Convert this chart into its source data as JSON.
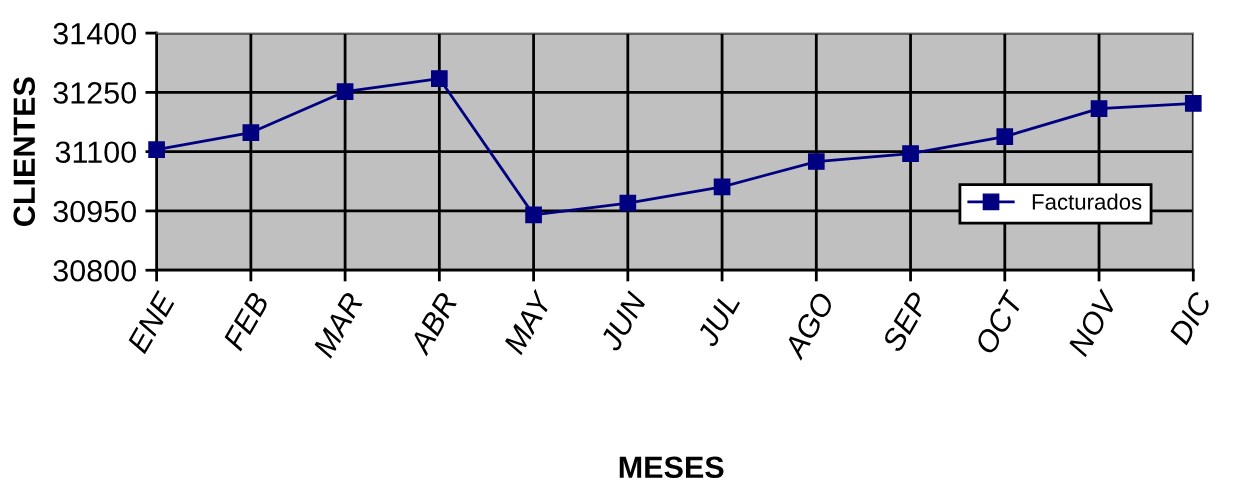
{
  "chart_data": {
    "type": "line",
    "xlabel": "MESES",
    "ylabel": "CLIENTES",
    "categories": [
      "ENE",
      "FEB",
      "MAR",
      "ABR",
      "MAY",
      "JUN",
      "JUL",
      "AGO",
      "SEP",
      "OCT",
      "NOV",
      "DIC"
    ],
    "series": [
      {
        "name": "Facturados",
        "color": "#000080",
        "values": [
          31105,
          31148,
          31252,
          31285,
          30940,
          30970,
          31011,
          31075,
          31095,
          31138,
          31209,
          31222
        ]
      }
    ],
    "ylim": [
      30800,
      31400
    ],
    "yticks": [
      30800,
      30950,
      31100,
      31250,
      31400
    ],
    "grid": true,
    "legend": "right",
    "marker": "square",
    "line_style": "solid"
  }
}
